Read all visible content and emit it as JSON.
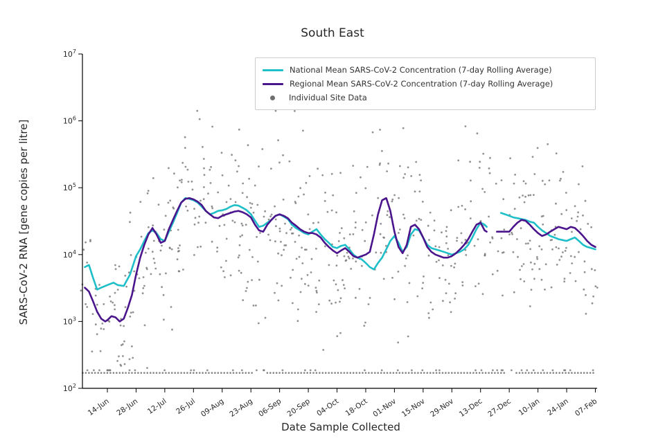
{
  "chart_data": {
    "type": "line+scatter",
    "title": "South East",
    "xlabel": "Date Sample Collected",
    "ylabel": "SARS-CoV-2 RNA [gene copies per litre]",
    "y_scale": "log",
    "ylim": [
      100,
      10000000
    ],
    "y_ticks_exponents": [
      2,
      3,
      4,
      5,
      6,
      7
    ],
    "x_range_days": [
      -12,
      238
    ],
    "grid": "off",
    "legend_position": "upper center-right inside",
    "x_ticks": [
      {
        "day": 0,
        "label": "14-Jun"
      },
      {
        "day": 14,
        "label": "28-Jun"
      },
      {
        "day": 28,
        "label": "12-Jul"
      },
      {
        "day": 42,
        "label": "26-Jul"
      },
      {
        "day": 56,
        "label": "09-Aug"
      },
      {
        "day": 70,
        "label": "23-Aug"
      },
      {
        "day": 84,
        "label": "06-Sep"
      },
      {
        "day": 98,
        "label": "20-Sep"
      },
      {
        "day": 112,
        "label": "04-Oct"
      },
      {
        "day": 126,
        "label": "18-Oct"
      },
      {
        "day": 140,
        "label": "01-Nov"
      },
      {
        "day": 154,
        "label": "15-Nov"
      },
      {
        "day": 168,
        "label": "29-Nov"
      },
      {
        "day": 182,
        "label": "13-Dec"
      },
      {
        "day": 196,
        "label": "27-Dec"
      },
      {
        "day": 210,
        "label": "10-Jan"
      },
      {
        "day": 224,
        "label": "24-Jan"
      },
      {
        "day": 238,
        "label": "07-Feb"
      }
    ],
    "legend": {
      "entries": [
        {
          "label": "National Mean SARS-CoV-2 Concentration (7-day Rolling Average)",
          "color": "#1fbfc9",
          "type": "line"
        },
        {
          "label": "Regional Mean SARS-CoV-2 Concentration (7-day Rolling Average)",
          "color": "#4a148c",
          "type": "line"
        },
        {
          "label": "Individual Site Data",
          "color": "#6e6e6e",
          "type": "dot"
        }
      ]
    },
    "series": [
      {
        "name": "National Mean (7-day Rolling Average)",
        "color": "#1fbfc9",
        "width": 2.6,
        "segments": [
          [
            [
              -11,
              6500
            ],
            [
              -9,
              7000
            ],
            [
              -7,
              4500
            ],
            [
              -5,
              3000
            ],
            [
              -3,
              3200
            ],
            [
              0,
              3500
            ],
            [
              3,
              3800
            ],
            [
              5,
              3500
            ],
            [
              8,
              3400
            ],
            [
              11,
              5000
            ],
            [
              14,
              9500
            ],
            [
              16,
              12000
            ],
            [
              18,
              16000
            ],
            [
              20,
              21000
            ],
            [
              22,
              23000
            ],
            [
              24,
              21000
            ],
            [
              26,
              17000
            ],
            [
              28,
              16000
            ],
            [
              30,
              22000
            ],
            [
              32,
              30000
            ],
            [
              34,
              42000
            ],
            [
              36,
              60000
            ],
            [
              38,
              70000
            ],
            [
              40,
              68000
            ],
            [
              42,
              65000
            ],
            [
              44,
              60000
            ],
            [
              46,
              52000
            ],
            [
              48,
              45000
            ],
            [
              50,
              40000
            ],
            [
              52,
              42000
            ],
            [
              54,
              45000
            ],
            [
              56,
              46000
            ],
            [
              58,
              48000
            ],
            [
              60,
              52000
            ],
            [
              62,
              55000
            ],
            [
              64,
              54000
            ],
            [
              66,
              50000
            ],
            [
              68,
              46000
            ],
            [
              70,
              40000
            ],
            [
              72,
              32000
            ],
            [
              74,
              26000
            ],
            [
              76,
              27000
            ],
            [
              78,
              30000
            ],
            [
              80,
              33000
            ],
            [
              82,
              38000
            ],
            [
              84,
              40000
            ],
            [
              86,
              37000
            ],
            [
              88,
              34000
            ],
            [
              90,
              28000
            ],
            [
              92,
              25000
            ],
            [
              94,
              23000
            ],
            [
              96,
              21000
            ],
            [
              98,
              20000
            ],
            [
              100,
              22000
            ],
            [
              102,
              24000
            ],
            [
              104,
              20000
            ],
            [
              106,
              17000
            ],
            [
              108,
              15000
            ],
            [
              110,
              13000
            ],
            [
              112,
              12500
            ],
            [
              114,
              13500
            ],
            [
              116,
              14000
            ],
            [
              118,
              12000
            ],
            [
              120,
              10000
            ],
            [
              122,
              9000
            ],
            [
              124,
              8500
            ],
            [
              126,
              7500
            ],
            [
              128,
              6500
            ],
            [
              130,
              6000
            ],
            [
              132,
              7500
            ],
            [
              134,
              9000
            ],
            [
              136,
              12000
            ],
            [
              138,
              16000
            ],
            [
              140,
              19000
            ],
            [
              142,
              15000
            ],
            [
              144,
              11000
            ],
            [
              146,
              13000
            ],
            [
              148,
              20000
            ],
            [
              150,
              24000
            ],
            [
              152,
              23000
            ],
            [
              154,
              18000
            ],
            [
              156,
              14000
            ],
            [
              158,
              12500
            ],
            [
              160,
              12000
            ],
            [
              162,
              11500
            ],
            [
              164,
              11000
            ],
            [
              166,
              10500
            ],
            [
              168,
              10000
            ],
            [
              170,
              10500
            ],
            [
              172,
              11000
            ],
            [
              174,
              12000
            ],
            [
              176,
              14000
            ],
            [
              178,
              18000
            ],
            [
              180,
              24000
            ],
            [
              182,
              30000
            ],
            [
              184,
              28000
            ],
            [
              185,
              26000
            ]
          ],
          [
            [
              192,
              42000
            ],
            [
              194,
              40000
            ],
            [
              196,
              38000
            ],
            [
              198,
              36000
            ],
            [
              200,
              35000
            ],
            [
              202,
              34000
            ],
            [
              204,
              33000
            ],
            [
              206,
              31000
            ],
            [
              208,
              30000
            ],
            [
              210,
              26000
            ],
            [
              212,
              23000
            ],
            [
              214,
              21000
            ],
            [
              216,
              19000
            ],
            [
              218,
              18000
            ],
            [
              220,
              17000
            ],
            [
              222,
              16500
            ],
            [
              224,
              16000
            ],
            [
              226,
              17000
            ],
            [
              228,
              18000
            ],
            [
              230,
              16000
            ],
            [
              232,
              14000
            ],
            [
              234,
              13000
            ],
            [
              236,
              12500
            ],
            [
              238,
              12000
            ]
          ]
        ]
      },
      {
        "name": "Regional Mean (7-day Rolling Average)",
        "color": "#4a148c",
        "width": 2.6,
        "segments": [
          [
            [
              -11,
              3200
            ],
            [
              -9,
              2800
            ],
            [
              -7,
              2000
            ],
            [
              -5,
              1400
            ],
            [
              -3,
              1100
            ],
            [
              -1,
              1000
            ],
            [
              0,
              1050
            ],
            [
              2,
              1200
            ],
            [
              4,
              1150
            ],
            [
              6,
              1000
            ],
            [
              8,
              1100
            ],
            [
              10,
              1600
            ],
            [
              12,
              2500
            ],
            [
              14,
              5000
            ],
            [
              16,
              9000
            ],
            [
              18,
              14000
            ],
            [
              20,
              20000
            ],
            [
              22,
              25000
            ],
            [
              24,
              20000
            ],
            [
              26,
              15000
            ],
            [
              28,
              16000
            ],
            [
              30,
              24000
            ],
            [
              32,
              33000
            ],
            [
              34,
              45000
            ],
            [
              36,
              60000
            ],
            [
              38,
              68000
            ],
            [
              40,
              70000
            ],
            [
              42,
              67000
            ],
            [
              44,
              62000
            ],
            [
              46,
              55000
            ],
            [
              48,
              45000
            ],
            [
              50,
              40000
            ],
            [
              52,
              36000
            ],
            [
              54,
              35000
            ],
            [
              56,
              38000
            ],
            [
              58,
              40000
            ],
            [
              60,
              42000
            ],
            [
              62,
              44000
            ],
            [
              64,
              45000
            ],
            [
              66,
              43000
            ],
            [
              68,
              40000
            ],
            [
              70,
              36000
            ],
            [
              72,
              28000
            ],
            [
              74,
              23000
            ],
            [
              76,
              22000
            ],
            [
              78,
              28000
            ],
            [
              80,
              33000
            ],
            [
              82,
              38000
            ],
            [
              84,
              40000
            ],
            [
              86,
              38000
            ],
            [
              88,
              35000
            ],
            [
              90,
              30000
            ],
            [
              92,
              27000
            ],
            [
              94,
              24000
            ],
            [
              96,
              22000
            ],
            [
              98,
              21000
            ],
            [
              100,
              21000
            ],
            [
              102,
              20000
            ],
            [
              104,
              18000
            ],
            [
              106,
              15000
            ],
            [
              108,
              13000
            ],
            [
              110,
              11500
            ],
            [
              112,
              10500
            ],
            [
              114,
              11500
            ],
            [
              116,
              12500
            ],
            [
              118,
              11000
            ],
            [
              120,
              9500
            ],
            [
              122,
              9000
            ],
            [
              124,
              9500
            ],
            [
              126,
              10000
            ],
            [
              128,
              11000
            ],
            [
              130,
              20000
            ],
            [
              132,
              40000
            ],
            [
              134,
              65000
            ],
            [
              136,
              70000
            ],
            [
              138,
              45000
            ],
            [
              140,
              22000
            ],
            [
              142,
              13000
            ],
            [
              144,
              10500
            ],
            [
              146,
              14000
            ],
            [
              148,
              26000
            ],
            [
              150,
              28000
            ],
            [
              152,
              24000
            ],
            [
              154,
              18000
            ],
            [
              156,
              13000
            ],
            [
              158,
              11000
            ],
            [
              160,
              10000
            ],
            [
              162,
              9500
            ],
            [
              164,
              9000
            ],
            [
              166,
              9000
            ],
            [
              168,
              9500
            ],
            [
              170,
              10500
            ],
            [
              172,
              12000
            ],
            [
              174,
              14000
            ],
            [
              176,
              17000
            ],
            [
              178,
              22000
            ],
            [
              180,
              28000
            ],
            [
              182,
              30000
            ],
            [
              184,
              23000
            ],
            [
              185,
              22000
            ]
          ],
          [
            [
              190,
              22000
            ],
            [
              192,
              22000
            ],
            [
              194,
              22000
            ],
            [
              196,
              22000
            ],
            [
              198,
              26000
            ],
            [
              200,
              30000
            ],
            [
              202,
              33000
            ],
            [
              204,
              32000
            ],
            [
              206,
              28000
            ],
            [
              208,
              24000
            ],
            [
              210,
              21000
            ],
            [
              212,
              19000
            ],
            [
              214,
              20000
            ],
            [
              216,
              22000
            ],
            [
              218,
              24000
            ],
            [
              220,
              26000
            ],
            [
              222,
              25000
            ],
            [
              224,
              24000
            ],
            [
              226,
              26000
            ],
            [
              228,
              25000
            ],
            [
              230,
              22000
            ],
            [
              232,
              19000
            ],
            [
              234,
              16000
            ],
            [
              236,
              14000
            ],
            [
              238,
              13000
            ]
          ]
        ]
      }
    ],
    "scatter": {
      "label": "Individual Site Data",
      "color": "#6e6e6e",
      "opacity": 0.75,
      "marker_radius": 1.4,
      "seed": 7,
      "step_days": 2,
      "points_per_step_min": 3,
      "points_per_step_max": 8,
      "log_sd": 0.62,
      "log_min": 2.27,
      "log_max": 6.15,
      "detection_floor_value": 170,
      "floor_step_days": 1.5,
      "floor_gaps_days": [
        [
          72,
          77
        ],
        [
          195,
          199
        ]
      ]
    }
  }
}
